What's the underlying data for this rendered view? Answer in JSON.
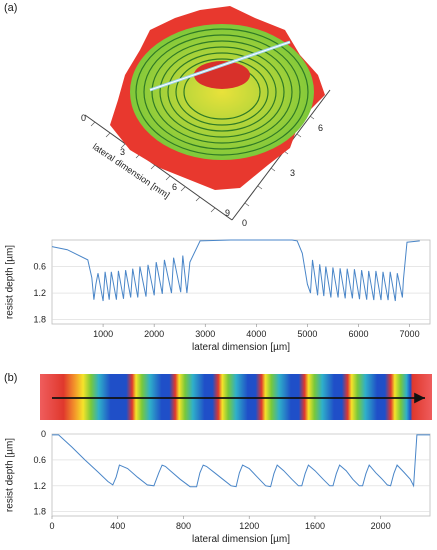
{
  "panels": {
    "a_label": "(a)",
    "b_label": "(b)"
  },
  "surface3d": {
    "axis_label": "lateral dimension [mm]",
    "left_axis_ticks": [
      "0",
      "3",
      "6",
      "9"
    ],
    "right_axis_ticks": [
      "0",
      "3",
      "6"
    ],
    "colors": {
      "base": "#e8382e",
      "ring_green": "#7ec83a",
      "ring_yellow": "#e9e23a",
      "scan_line": "#9fd6ee"
    }
  },
  "stripe": {
    "colors": [
      "#ef5d5d",
      "#e0382d",
      "#f49a2a",
      "#f5e32a",
      "#79c83a",
      "#2fb0c9",
      "#1f4fc8",
      "#173aa6"
    ],
    "arrow_color": "#111111"
  },
  "chart_data": [
    {
      "type": "line",
      "x": [
        0,
        300,
        700,
        780,
        820,
        860,
        900,
        1000,
        1040,
        1120,
        1160,
        1260,
        1300,
        1400,
        1440,
        1540,
        1580,
        1680,
        1720,
        1840,
        1880,
        2000,
        2040,
        2160,
        2200,
        2340,
        2380,
        2520,
        2560,
        2640,
        2700,
        2900,
        3500,
        4700,
        4800,
        4900,
        5000,
        5060,
        5100,
        5200,
        5240,
        5320,
        5360,
        5460,
        5500,
        5600,
        5640,
        5740,
        5780,
        5880,
        5920,
        6020,
        6060,
        6160,
        6200,
        6300,
        6340,
        6440,
        6480,
        6580,
        6620,
        6720,
        6760,
        6860,
        6880,
        6950,
        7200
      ],
      "y": [
        0.15,
        0.22,
        0.45,
        0.85,
        1.35,
        1.0,
        0.75,
        1.38,
        0.72,
        1.35,
        0.72,
        1.35,
        0.7,
        1.33,
        0.68,
        1.3,
        0.65,
        1.3,
        0.6,
        1.28,
        0.56,
        1.25,
        0.5,
        1.22,
        0.45,
        1.2,
        0.4,
        1.18,
        0.35,
        1.2,
        0.5,
        0.02,
        0.0,
        0.0,
        0.02,
        0.3,
        1.0,
        1.2,
        0.45,
        1.25,
        0.55,
        1.27,
        0.6,
        1.3,
        0.62,
        1.3,
        0.64,
        1.32,
        0.65,
        1.32,
        0.66,
        1.34,
        0.68,
        1.35,
        0.7,
        1.36,
        0.7,
        1.36,
        0.72,
        1.36,
        0.72,
        1.38,
        0.75,
        1.3,
        0.9,
        0.05,
        0.02
      ],
      "xlim": [
        0,
        7400
      ],
      "ylim": [
        0,
        1.9
      ],
      "y_inverted": true,
      "xticks": [
        1000,
        2000,
        3000,
        4000,
        5000,
        6000,
        7000
      ],
      "yticks": [
        0.6,
        1.2,
        1.8
      ],
      "ytick_labels": [
        "0.6",
        "1.2",
        "1.8"
      ],
      "xlabel": "lateral dimension [µm]",
      "ylabel": "resist depth [µm]",
      "color": "#4a86c8"
    },
    {
      "type": "line",
      "x": [
        0,
        40,
        120,
        200,
        280,
        340,
        370,
        390,
        410,
        460,
        520,
        580,
        620,
        650,
        670,
        690,
        720,
        780,
        840,
        880,
        900,
        920,
        940,
        990,
        1040,
        1090,
        1120,
        1140,
        1160,
        1200,
        1250,
        1300,
        1330,
        1350,
        1370,
        1410,
        1460,
        1500,
        1520,
        1540,
        1560,
        1600,
        1650,
        1690,
        1710,
        1730,
        1750,
        1790,
        1830,
        1870,
        1890,
        1910,
        1930,
        1970,
        2010,
        2040,
        2060,
        2080,
        2100,
        2140,
        2180,
        2200,
        2220,
        2260,
        2300
      ],
      "y": [
        0.02,
        0.02,
        0.3,
        0.6,
        0.88,
        1.1,
        1.18,
        1.0,
        0.72,
        0.8,
        1.0,
        1.18,
        1.2,
        0.9,
        0.72,
        0.75,
        0.85,
        1.05,
        1.22,
        1.22,
        0.9,
        0.72,
        0.75,
        0.9,
        1.05,
        1.2,
        1.22,
        0.9,
        0.72,
        0.8,
        1.0,
        1.2,
        1.22,
        0.92,
        0.72,
        0.85,
        1.05,
        1.2,
        1.2,
        0.92,
        0.72,
        0.85,
        1.05,
        1.2,
        1.2,
        0.92,
        0.72,
        0.85,
        1.05,
        1.2,
        1.2,
        0.92,
        0.72,
        0.9,
        1.05,
        1.18,
        1.2,
        0.92,
        0.72,
        0.88,
        1.05,
        1.2,
        0.02,
        0.02,
        0.02
      ],
      "xlim": [
        0,
        2300
      ],
      "ylim": [
        0,
        1.9
      ],
      "y_inverted": true,
      "xticks": [
        0,
        400,
        800,
        1200,
        1600,
        2000
      ],
      "yticks": [
        0,
        0.6,
        1.2,
        1.8
      ],
      "ytick_labels": [
        "0",
        "0.6",
        "1.2",
        "1.8"
      ],
      "xlabel": "lateral dimension [µm]",
      "ylabel": "resist depth [µm]",
      "color": "#4a86c8"
    }
  ]
}
